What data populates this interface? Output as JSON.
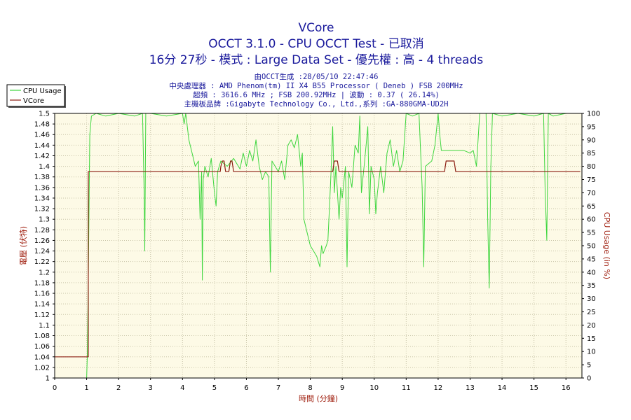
{
  "header": {
    "title": "VCore",
    "subtitle1": "OCCT 3.1.0 - CPU OCCT Test - 已取消",
    "subtitle2": "16分 27秒 - 模式 : Large Data Set - 優先權 : 高 - 4 threads",
    "info_lines": [
      "由OCCT生成 :28/05/10 22:47:46",
      "中央處理器 : AMD Phenom(tm) II X4 B55 Processor ( Deneb ) FSB 200MHz",
      "超頻 : 3616.6 MHz ; FSB 200.92MHz | 波動 : 0.37 ( 26.14%)",
      "主機板品牌 :Gigabyte Technology Co., Ltd.,系列 :GA-880GMA-UD2H"
    ]
  },
  "colors": {
    "background": "#ffffff",
    "plot_bg": "#fdfae6",
    "grid": "#c8c4a8",
    "cpu_line": "#3ed63e",
    "vcore_line": "#8c1c10",
    "title": "#1a1a9c",
    "axis_title": "#a02010"
  },
  "chart_data": {
    "type": "line",
    "xlabel": "時間 (分鐘)",
    "ylabel": "電壓 (伏特)",
    "y2label": "CPU Usage (in %)",
    "xlim": [
      0,
      16.5
    ],
    "ylim": [
      1,
      1.5
    ],
    "y2lim": [
      0,
      100
    ],
    "x_ticks": [
      0,
      1,
      2,
      3,
      4,
      5,
      6,
      7,
      8,
      9,
      10,
      11,
      12,
      13,
      14,
      15,
      16
    ],
    "y_ticks": [
      "1",
      "1.02",
      "1.04",
      "1.06",
      "1.08",
      "1.1",
      "1.12",
      "1.14",
      "1.16",
      "1.18",
      "1.2",
      "1.22",
      "1.24",
      "1.26",
      "1.28",
      "1.3",
      "1.32",
      "1.34",
      "1.36",
      "1.38",
      "1.4",
      "1.42",
      "1.44",
      "1.46",
      "1.48",
      "1.5"
    ],
    "y2_ticks": [
      0,
      5,
      10,
      15,
      20,
      25,
      30,
      35,
      40,
      45,
      50,
      55,
      60,
      65,
      70,
      75,
      80,
      85,
      90,
      95,
      100
    ],
    "grid": true,
    "legend_position": "top-left",
    "series": [
      {
        "name": "CPU Usage",
        "axis": "right",
        "points": [
          [
            0,
            0
          ],
          [
            1.0,
            0
          ],
          [
            1.02,
            8
          ],
          [
            1.05,
            35
          ],
          [
            1.08,
            70
          ],
          [
            1.1,
            92
          ],
          [
            1.15,
            99
          ],
          [
            1.3,
            100
          ],
          [
            1.6,
            99
          ],
          [
            2.0,
            100
          ],
          [
            2.5,
            99
          ],
          [
            2.75,
            100
          ],
          [
            2.8,
            70
          ],
          [
            2.82,
            48
          ],
          [
            2.85,
            100
          ],
          [
            3.0,
            100
          ],
          [
            3.5,
            99
          ],
          [
            4.0,
            100
          ],
          [
            4.05,
            96
          ],
          [
            4.1,
            100
          ],
          [
            4.2,
            90
          ],
          [
            4.3,
            85
          ],
          [
            4.4,
            80
          ],
          [
            4.5,
            82
          ],
          [
            4.55,
            60
          ],
          [
            4.6,
            78
          ],
          [
            4.62,
            37
          ],
          [
            4.65,
            75
          ],
          [
            4.7,
            80
          ],
          [
            4.8,
            76
          ],
          [
            4.9,
            83
          ],
          [
            5.0,
            70
          ],
          [
            5.05,
            65
          ],
          [
            5.1,
            78
          ],
          [
            5.2,
            82
          ],
          [
            5.4,
            80
          ],
          [
            5.6,
            83
          ],
          [
            5.8,
            79
          ],
          [
            5.9,
            85
          ],
          [
            6.0,
            80
          ],
          [
            6.1,
            86
          ],
          [
            6.2,
            82
          ],
          [
            6.3,
            90
          ],
          [
            6.4,
            80
          ],
          [
            6.5,
            75
          ],
          [
            6.6,
            78
          ],
          [
            6.7,
            76
          ],
          [
            6.75,
            40
          ],
          [
            6.8,
            82
          ],
          [
            6.9,
            80
          ],
          [
            7.0,
            78
          ],
          [
            7.1,
            82
          ],
          [
            7.2,
            75
          ],
          [
            7.3,
            88
          ],
          [
            7.4,
            90
          ],
          [
            7.5,
            87
          ],
          [
            7.6,
            92
          ],
          [
            7.7,
            80
          ],
          [
            7.75,
            85
          ],
          [
            7.8,
            60
          ],
          [
            7.9,
            55
          ],
          [
            8.0,
            50
          ],
          [
            8.1,
            48
          ],
          [
            8.2,
            46
          ],
          [
            8.3,
            42
          ],
          [
            8.35,
            50
          ],
          [
            8.4,
            47
          ],
          [
            8.5,
            50
          ],
          [
            8.55,
            52
          ],
          [
            8.6,
            65
          ],
          [
            8.65,
            78
          ],
          [
            8.7,
            95
          ],
          [
            8.75,
            70
          ],
          [
            8.8,
            80
          ],
          [
            8.9,
            60
          ],
          [
            8.95,
            72
          ],
          [
            9.0,
            68
          ],
          [
            9.1,
            80
          ],
          [
            9.15,
            42
          ],
          [
            9.2,
            78
          ],
          [
            9.3,
            72
          ],
          [
            9.4,
            88
          ],
          [
            9.5,
            85
          ],
          [
            9.55,
            99
          ],
          [
            9.6,
            70
          ],
          [
            9.7,
            82
          ],
          [
            9.8,
            95
          ],
          [
            9.85,
            62
          ],
          [
            9.9,
            80
          ],
          [
            10.0,
            75
          ],
          [
            10.05,
            62
          ],
          [
            10.1,
            70
          ],
          [
            10.2,
            80
          ],
          [
            10.3,
            70
          ],
          [
            10.4,
            85
          ],
          [
            10.5,
            90
          ],
          [
            10.6,
            80
          ],
          [
            10.7,
            86
          ],
          [
            10.8,
            78
          ],
          [
            10.9,
            82
          ],
          [
            11.0,
            100
          ],
          [
            11.2,
            99
          ],
          [
            11.4,
            100
          ],
          [
            11.5,
            72
          ],
          [
            11.55,
            42
          ],
          [
            11.6,
            80
          ],
          [
            11.8,
            82
          ],
          [
            11.9,
            88
          ],
          [
            12.0,
            100
          ],
          [
            12.05,
            92
          ],
          [
            12.1,
            86
          ],
          [
            12.2,
            86
          ],
          [
            12.4,
            86
          ],
          [
            12.6,
            86
          ],
          [
            12.8,
            86
          ],
          [
            13.0,
            85
          ],
          [
            13.1,
            86
          ],
          [
            13.2,
            80
          ],
          [
            13.25,
            90
          ],
          [
            13.3,
            100
          ],
          [
            13.5,
            100
          ],
          [
            13.55,
            60
          ],
          [
            13.6,
            34
          ],
          [
            13.65,
            80
          ],
          [
            13.7,
            100
          ],
          [
            14.0,
            99
          ],
          [
            14.5,
            100
          ],
          [
            15.0,
            99
          ],
          [
            15.3,
            100
          ],
          [
            15.35,
            70
          ],
          [
            15.4,
            52
          ],
          [
            15.45,
            100
          ],
          [
            15.6,
            99
          ],
          [
            16.0,
            100
          ],
          [
            16.45,
            100
          ]
        ]
      },
      {
        "name": "VCore",
        "axis": "left",
        "points": [
          [
            0,
            1.04
          ],
          [
            1.05,
            1.04
          ],
          [
            1.05,
            1.39
          ],
          [
            5.18,
            1.39
          ],
          [
            5.2,
            1.4
          ],
          [
            5.25,
            1.41
          ],
          [
            5.3,
            1.41
          ],
          [
            5.35,
            1.39
          ],
          [
            5.45,
            1.39
          ],
          [
            5.5,
            1.41
          ],
          [
            5.55,
            1.41
          ],
          [
            5.6,
            1.39
          ],
          [
            8.7,
            1.39
          ],
          [
            8.75,
            1.41
          ],
          [
            8.85,
            1.41
          ],
          [
            8.9,
            1.39
          ],
          [
            12.2,
            1.39
          ],
          [
            12.25,
            1.41
          ],
          [
            12.5,
            1.41
          ],
          [
            12.55,
            1.39
          ],
          [
            16.45,
            1.39
          ]
        ]
      }
    ]
  }
}
